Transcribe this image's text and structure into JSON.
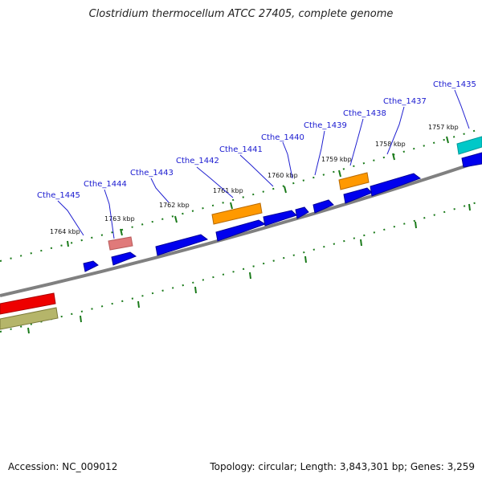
{
  "title": "Clostridium thermocellum ATCC 27405, complete genome",
  "footer": {
    "accession": "Accession: NC_009012",
    "summary": "Topology: circular; Length: 3,843,301 bp; Genes: 3,259"
  },
  "ticks": [
    "1764 kbp",
    "1763 kbp",
    "1762 kbp",
    "1761 kbp",
    "1760 kbp",
    "1759 kbp",
    "1758 kbp",
    "1757 kbp"
  ],
  "gene_labels": [
    "Cthe_1445",
    "Cthe_1444",
    "Cthe_1443",
    "Cthe_1442",
    "Cthe_1441",
    "Cthe_1440",
    "Cthe_1439",
    "Cthe_1438",
    "Cthe_1437",
    "Cthe_1435"
  ],
  "colors": {
    "backbone": "#808080",
    "tick": "#1a7a1a",
    "cds": "#0000ee",
    "orange": "#ff9900",
    "pink": "#e07a7a",
    "red": "#ee0000",
    "olive": "#b5b56a",
    "cyan": "#00c8c8",
    "label_line": "#2020d0"
  }
}
